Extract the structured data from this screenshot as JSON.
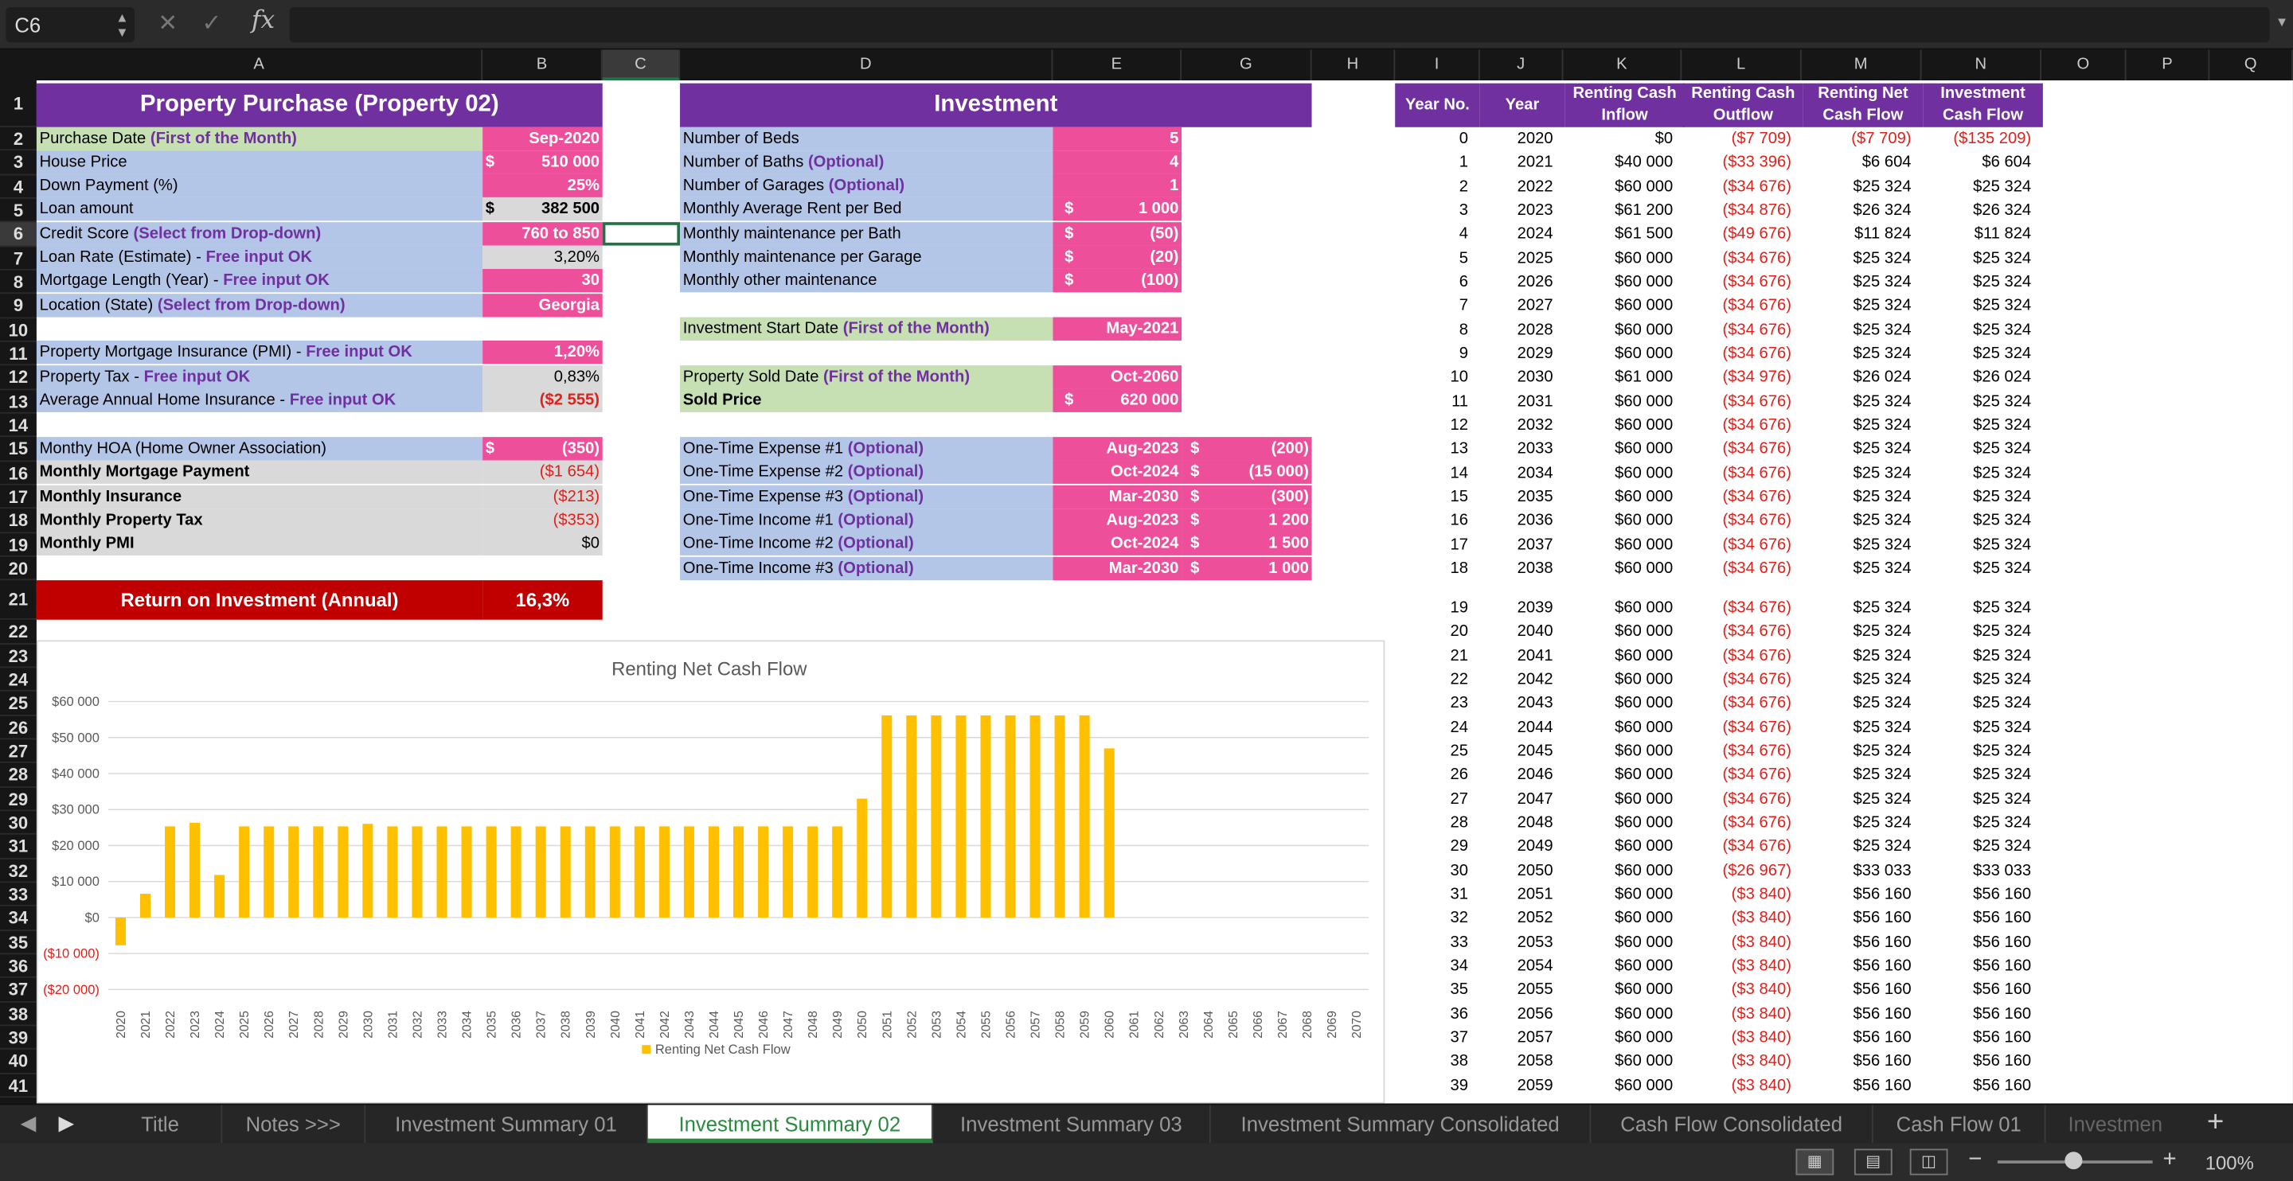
{
  "formula_bar": {
    "name_box": "C6",
    "cancel_icon": "✕",
    "enter_icon": "✓",
    "fx": "fx",
    "formula": ""
  },
  "columns": [
    "A",
    "B",
    "C",
    "D",
    "E",
    "G",
    "H",
    "I",
    "J",
    "K",
    "L",
    "M",
    "N",
    "O",
    "P",
    "Q"
  ],
  "rows": [
    "1",
    "2",
    "3",
    "4",
    "5",
    "6",
    "7",
    "8",
    "9",
    "10",
    "11",
    "12",
    "13",
    "14",
    "15",
    "16",
    "17",
    "18",
    "19",
    "20",
    "21",
    "22",
    "23",
    "24",
    "25",
    "26",
    "27",
    "28",
    "29",
    "30",
    "31",
    "32",
    "33",
    "34",
    "35",
    "36",
    "37",
    "38",
    "39",
    "40",
    "41"
  ],
  "property": {
    "title": "Property Purchase (Property 02)",
    "purchase_date": {
      "label": "Purchase Date ",
      "hint": "(First of the Month)",
      "value": "Sep-2020"
    },
    "house_price": {
      "label": "House Price",
      "cur": "$",
      "value": "510 000"
    },
    "down_payment": {
      "label": "Down Payment (%)",
      "value": "25%"
    },
    "loan_amount": {
      "label": "Loan amount",
      "cur": "$",
      "value": "382 500"
    },
    "credit_score": {
      "label": "Credit Score ",
      "hint": "(Select from Drop-down)",
      "value": "760 to 850"
    },
    "loan_rate": {
      "label": "Loan Rate (Estimate) - ",
      "hint": "Free input OK",
      "value": "3,20%"
    },
    "mortgage_length": {
      "label": "Mortgage Length (Year) - ",
      "hint": "Free input OK",
      "value": "30"
    },
    "location": {
      "label": "Location (State) ",
      "hint": "(Select from Drop-down)",
      "value": "Georgia"
    },
    "pmi": {
      "label": "Property Mortgage Insurance (PMI) - ",
      "hint": "Free input OK",
      "value": "1,20%"
    },
    "property_tax": {
      "label": "Property Tax - ",
      "hint": "Free input OK",
      "value": "0,83%"
    },
    "home_insurance": {
      "label": "Average Annual Home Insurance - ",
      "hint": "Free input OK",
      "value": "($2 555)"
    },
    "hoa": {
      "label": "Monthy HOA (Home Owner Association)",
      "cur": "$",
      "value": "(350)"
    },
    "mortgage_payment": {
      "label": "Monthly Mortgage Payment",
      "value": "($1 654)"
    },
    "insurance": {
      "label": "Monthly Insurance",
      "value": "($213)"
    },
    "monthly_tax": {
      "label": "Monthly Property Tax",
      "value": "($353)"
    },
    "monthly_pmi": {
      "label": "Monthly PMI",
      "value": "$0"
    },
    "roi": {
      "label": "Return on Investment (Annual)",
      "value": "16,3%"
    }
  },
  "investment": {
    "title": "Investment",
    "beds": {
      "label": "Number of Beds",
      "value": "5"
    },
    "baths": {
      "label": "Number of Baths ",
      "hint": "(Optional)",
      "value": "4"
    },
    "garages": {
      "label": "Number of Garages ",
      "hint": "(Optional)",
      "value": "1"
    },
    "rent_per_bed": {
      "label": "Monthly Average Rent per Bed",
      "cur": "$",
      "value": "1 000"
    },
    "maint_bath": {
      "label": "Monthly maintenance per Bath",
      "cur": "$",
      "value": "(50)"
    },
    "maint_garage": {
      "label": "Monthly maintenance per Garage",
      "cur": "$",
      "value": "(20)"
    },
    "other_maint": {
      "label": "Monthly other maintenance",
      "cur": "$",
      "value": "(100)"
    },
    "start_date": {
      "label": "Investment Start Date ",
      "hint": "(First of the Month)",
      "value": "May-2021"
    },
    "sold_date": {
      "label": "Property Sold Date ",
      "hint": "(First of the Month)",
      "value": "Oct-2060"
    },
    "sold_price": {
      "label": "Sold Price",
      "cur": "$",
      "value": "620 000"
    },
    "one_time": [
      {
        "label": "One-Time Expense #1 ",
        "hint": "(Optional)",
        "date": "Aug-2023",
        "cur": "$",
        "value": "(200)"
      },
      {
        "label": "One-Time Expense #2 ",
        "hint": "(Optional)",
        "date": "Oct-2024",
        "cur": "$",
        "value": "(15 000)"
      },
      {
        "label": "One-Time Expense #3 ",
        "hint": "(Optional)",
        "date": "Mar-2030",
        "cur": "$",
        "value": "(300)"
      },
      {
        "label": "One-Time Income #1 ",
        "hint": "(Optional)",
        "date": "Aug-2023",
        "cur": "$",
        "value": "1 200"
      },
      {
        "label": "One-Time Income #2 ",
        "hint": "(Optional)",
        "date": "Oct-2024",
        "cur": "$",
        "value": "1 500"
      },
      {
        "label": "One-Time Income #3 ",
        "hint": "(Optional)",
        "date": "Mar-2030",
        "cur": "$",
        "value": "1 000"
      }
    ]
  },
  "table": {
    "headers": {
      "year_no": "Year No.",
      "year": "Year",
      "inflow_1": "Renting Cash",
      "inflow_2": "Inflow",
      "outflow_1": "Renting Cash",
      "outflow_2": "Outflow",
      "net_1": "Renting Net",
      "net_2": "Cash Flow",
      "inv_1": "Investment",
      "inv_2": "Cash Flow"
    },
    "rows": [
      [
        "0",
        "2020",
        "$0",
        "($7 709)",
        "($7 709)",
        "($135 209)"
      ],
      [
        "1",
        "2021",
        "$40 000",
        "($33 396)",
        "$6 604",
        "$6 604"
      ],
      [
        "2",
        "2022",
        "$60 000",
        "($34 676)",
        "$25 324",
        "$25 324"
      ],
      [
        "3",
        "2023",
        "$61 200",
        "($34 876)",
        "$26 324",
        "$26 324"
      ],
      [
        "4",
        "2024",
        "$61 500",
        "($49 676)",
        "$11 824",
        "$11 824"
      ],
      [
        "5",
        "2025",
        "$60 000",
        "($34 676)",
        "$25 324",
        "$25 324"
      ],
      [
        "6",
        "2026",
        "$60 000",
        "($34 676)",
        "$25 324",
        "$25 324"
      ],
      [
        "7",
        "2027",
        "$60 000",
        "($34 676)",
        "$25 324",
        "$25 324"
      ],
      [
        "8",
        "2028",
        "$60 000",
        "($34 676)",
        "$25 324",
        "$25 324"
      ],
      [
        "9",
        "2029",
        "$60 000",
        "($34 676)",
        "$25 324",
        "$25 324"
      ],
      [
        "10",
        "2030",
        "$61 000",
        "($34 976)",
        "$26 024",
        "$26 024"
      ],
      [
        "11",
        "2031",
        "$60 000",
        "($34 676)",
        "$25 324",
        "$25 324"
      ],
      [
        "12",
        "2032",
        "$60 000",
        "($34 676)",
        "$25 324",
        "$25 324"
      ],
      [
        "13",
        "2033",
        "$60 000",
        "($34 676)",
        "$25 324",
        "$25 324"
      ],
      [
        "14",
        "2034",
        "$60 000",
        "($34 676)",
        "$25 324",
        "$25 324"
      ],
      [
        "15",
        "2035",
        "$60 000",
        "($34 676)",
        "$25 324",
        "$25 324"
      ],
      [
        "16",
        "2036",
        "$60 000",
        "($34 676)",
        "$25 324",
        "$25 324"
      ],
      [
        "17",
        "2037",
        "$60 000",
        "($34 676)",
        "$25 324",
        "$25 324"
      ],
      [
        "18",
        "2038",
        "$60 000",
        "($34 676)",
        "$25 324",
        "$25 324"
      ],
      [
        "19",
        "2039",
        "$60 000",
        "($34 676)",
        "$25 324",
        "$25 324"
      ],
      [
        "20",
        "2040",
        "$60 000",
        "($34 676)",
        "$25 324",
        "$25 324"
      ],
      [
        "21",
        "2041",
        "$60 000",
        "($34 676)",
        "$25 324",
        "$25 324"
      ],
      [
        "22",
        "2042",
        "$60 000",
        "($34 676)",
        "$25 324",
        "$25 324"
      ],
      [
        "23",
        "2043",
        "$60 000",
        "($34 676)",
        "$25 324",
        "$25 324"
      ],
      [
        "24",
        "2044",
        "$60 000",
        "($34 676)",
        "$25 324",
        "$25 324"
      ],
      [
        "25",
        "2045",
        "$60 000",
        "($34 676)",
        "$25 324",
        "$25 324"
      ],
      [
        "26",
        "2046",
        "$60 000",
        "($34 676)",
        "$25 324",
        "$25 324"
      ],
      [
        "27",
        "2047",
        "$60 000",
        "($34 676)",
        "$25 324",
        "$25 324"
      ],
      [
        "28",
        "2048",
        "$60 000",
        "($34 676)",
        "$25 324",
        "$25 324"
      ],
      [
        "29",
        "2049",
        "$60 000",
        "($34 676)",
        "$25 324",
        "$25 324"
      ],
      [
        "30",
        "2050",
        "$60 000",
        "($26 967)",
        "$33 033",
        "$33 033"
      ],
      [
        "31",
        "2051",
        "$60 000",
        "($3 840)",
        "$56 160",
        "$56 160"
      ],
      [
        "32",
        "2052",
        "$60 000",
        "($3 840)",
        "$56 160",
        "$56 160"
      ],
      [
        "33",
        "2053",
        "$60 000",
        "($3 840)",
        "$56 160",
        "$56 160"
      ],
      [
        "34",
        "2054",
        "$60 000",
        "($3 840)",
        "$56 160",
        "$56 160"
      ],
      [
        "35",
        "2055",
        "$60 000",
        "($3 840)",
        "$56 160",
        "$56 160"
      ],
      [
        "36",
        "2056",
        "$60 000",
        "($3 840)",
        "$56 160",
        "$56 160"
      ],
      [
        "37",
        "2057",
        "$60 000",
        "($3 840)",
        "$56 160",
        "$56 160"
      ],
      [
        "38",
        "2058",
        "$60 000",
        "($3 840)",
        "$56 160",
        "$56 160"
      ],
      [
        "39",
        "2059",
        "$60 000",
        "($3 840)",
        "$56 160",
        "$56 160"
      ]
    ]
  },
  "chart_data": {
    "type": "bar",
    "title": "Renting Net Cash Flow",
    "legend": "Renting Net Cash Flow",
    "legend_position": "bottom",
    "color": "#ffc000",
    "ylim": [
      -20000,
      60000
    ],
    "y_ticks": [
      -20000,
      -10000,
      0,
      10000,
      20000,
      30000,
      40000,
      50000,
      60000
    ],
    "y_tick_labels": [
      "($20 000)",
      "($10 000)",
      "$0",
      "$10 000",
      "$20 000",
      "$30 000",
      "$40 000",
      "$50 000",
      "$60 000"
    ],
    "categories": [
      "2020",
      "2021",
      "2022",
      "2023",
      "2024",
      "2025",
      "2026",
      "2027",
      "2028",
      "2029",
      "2030",
      "2031",
      "2032",
      "2033",
      "2034",
      "2035",
      "2036",
      "2037",
      "2038",
      "2039",
      "2040",
      "2041",
      "2042",
      "2043",
      "2044",
      "2045",
      "2046",
      "2047",
      "2048",
      "2049",
      "2050",
      "2051",
      "2052",
      "2053",
      "2054",
      "2055",
      "2056",
      "2057",
      "2058",
      "2059",
      "2060",
      "2061",
      "2062",
      "2063",
      "2064",
      "2065",
      "2066",
      "2067",
      "2068",
      "2069",
      "2070"
    ],
    "values": [
      -7709,
      6604,
      25324,
      26324,
      11824,
      25324,
      25324,
      25324,
      25324,
      25324,
      26024,
      25324,
      25324,
      25324,
      25324,
      25324,
      25324,
      25324,
      25324,
      25324,
      25324,
      25324,
      25324,
      25324,
      25324,
      25324,
      25324,
      25324,
      25324,
      25324,
      33033,
      56160,
      56160,
      56160,
      56160,
      56160,
      56160,
      56160,
      56160,
      56160,
      47000,
      0,
      0,
      0,
      0,
      0,
      0,
      0,
      0,
      0,
      0
    ],
    "grid": true
  },
  "tabs": [
    "Title",
    "Notes >>>",
    "Investment Summary 01",
    "Investment Summary 02",
    "Investment Summary 03",
    "Investment Summary Consolidated",
    "Cash Flow Consolidated",
    "Cash Flow 01",
    "Investmen"
  ],
  "active_tab": "Investment Summary 02",
  "zoom": "100%",
  "zoom_level": 1.0
}
